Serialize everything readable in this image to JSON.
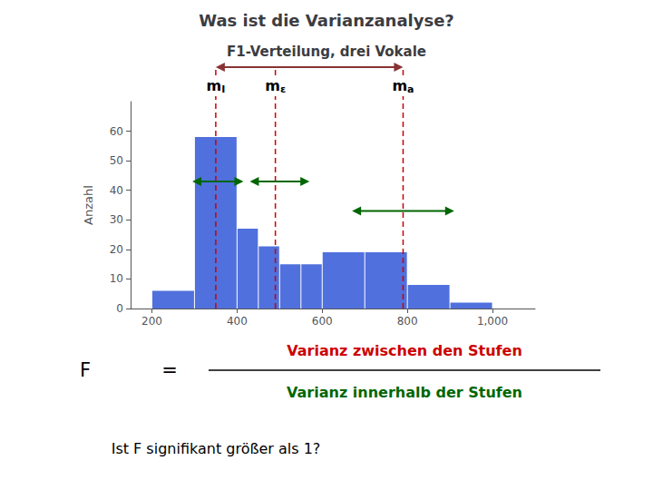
{
  "chart_data": {
    "type": "histogram",
    "title": "Was ist die Varianzanalyse?",
    "subtitle": "F1-Verteilung, drei Vokale",
    "ylabel": "Anzahl",
    "bins": [
      200,
      300,
      400,
      450,
      500,
      550,
      600,
      700,
      800,
      900,
      1000
    ],
    "values": [
      6,
      58,
      27,
      21,
      15,
      15,
      19,
      19,
      8,
      2
    ],
    "xlim": [
      150,
      1100
    ],
    "xticks": [
      200,
      400,
      600,
      800,
      1000
    ],
    "ylim": [
      0,
      70
    ],
    "yticks": [
      0,
      10,
      20,
      30,
      40,
      50,
      60
    ],
    "grid": false,
    "mean_lines": {
      "color": "#cc0000",
      "line_style": "dashed",
      "lines": [
        {
          "x": 350,
          "label": "m",
          "subscript": "I"
        },
        {
          "x": 490,
          "label": "m",
          "subscript": "ε"
        },
        {
          "x": 790,
          "label": "m",
          "subscript": "a"
        }
      ]
    },
    "between_arrow": {
      "from": 350,
      "to": 790,
      "color": "#883333"
    },
    "within_arrows": {
      "color": "#006600",
      "arrows": [
        {
          "from": 295,
          "to": 415,
          "y": 43
        },
        {
          "from": 430,
          "to": 570,
          "y": 43
        },
        {
          "from": 670,
          "to": 910,
          "y": 33
        }
      ]
    },
    "formula": {
      "left": "F",
      "operator": "=",
      "color": "#000000",
      "numerator": {
        "text": "Varianz zwischen den Stufen",
        "color": "#cc0000"
      },
      "denominator": {
        "text": "Varianz innerhalb der Stufen",
        "color": "#006600"
      }
    },
    "bottom_text": "Ist F signifikant größer als 1?"
  }
}
